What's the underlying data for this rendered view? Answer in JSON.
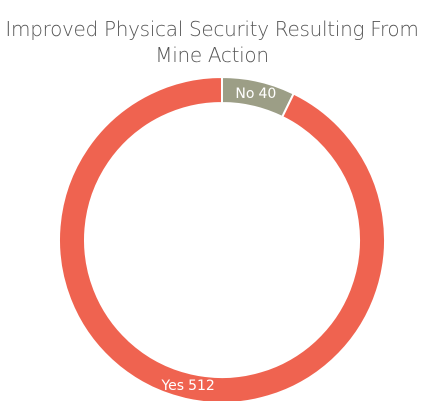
{
  "chart_data": {
    "type": "pie",
    "title": "Improved Physical Security Resulting From Mine Action",
    "categories": [
      "No",
      "Yes"
    ],
    "values": [
      40,
      512
    ],
    "colors": [
      "#9c9e86",
      "#ef6350"
    ],
    "donut": true
  }
}
